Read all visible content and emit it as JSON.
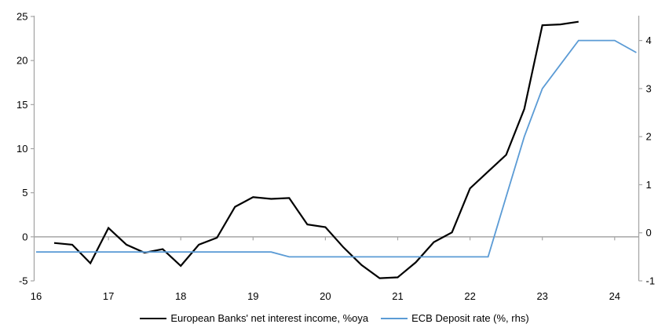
{
  "chart_data": {
    "type": "line",
    "title": "",
    "grid": "zero-line-only",
    "legend_position": "bottom",
    "x_axis": {
      "ticks": [
        16,
        17,
        18,
        19,
        20,
        21,
        22,
        23,
        24
      ],
      "labels": [
        "16",
        "17",
        "18",
        "19",
        "20",
        "21",
        "22",
        "23",
        "24"
      ],
      "range": [
        16,
        24.33
      ]
    },
    "left_axis": {
      "ticks": [
        25,
        20,
        15,
        10,
        5,
        0,
        -5
      ],
      "range": [
        -5,
        25
      ]
    },
    "right_axis": {
      "ticks": [
        4,
        3,
        2,
        1,
        0,
        -1
      ],
      "range": [
        -1,
        4.5
      ]
    },
    "series": [
      {
        "name": "European Banks' net interest income, %oya",
        "axis": "left",
        "color": "#000000",
        "width": 2.2,
        "x": [
          16.25,
          16.5,
          16.75,
          17.0,
          17.25,
          17.5,
          17.75,
          18.0,
          18.25,
          18.5,
          18.75,
          19.0,
          19.25,
          19.5,
          19.75,
          20.0,
          20.25,
          20.5,
          20.75,
          21.0,
          21.25,
          21.5,
          21.75,
          22.0,
          22.25,
          22.5,
          22.75,
          23.0,
          23.25,
          23.5
        ],
        "values": [
          -0.7,
          -0.9,
          -3.0,
          1.0,
          -0.9,
          -1.8,
          -1.4,
          -3.3,
          -0.9,
          -0.1,
          3.4,
          4.5,
          4.3,
          4.4,
          1.4,
          1.1,
          -1.2,
          -3.2,
          -4.7,
          -4.6,
          -2.9,
          -0.6,
          0.5,
          5.5,
          7.4,
          9.3,
          14.5,
          24.0,
          24.1,
          24.4
        ]
      },
      {
        "name": "ECB Deposit rate (%, rhs)",
        "axis": "right",
        "color": "#5B9BD5",
        "width": 1.8,
        "x": [
          16.0,
          19.25,
          19.5,
          22.25,
          22.5,
          22.75,
          23.0,
          23.25,
          23.5,
          24.0,
          24.3
        ],
        "values": [
          -0.4,
          -0.4,
          -0.5,
          -0.5,
          0.75,
          2.0,
          3.0,
          3.5,
          4.0,
          4.0,
          3.75
        ]
      }
    ],
    "axis_color": "#A6A6A6",
    "zero_line_color": "#A6A6A6"
  },
  "legend": {
    "items": [
      {
        "label": "European Banks' net interest income, %oya"
      },
      {
        "label": "ECB Deposit rate (%, rhs)"
      }
    ]
  }
}
